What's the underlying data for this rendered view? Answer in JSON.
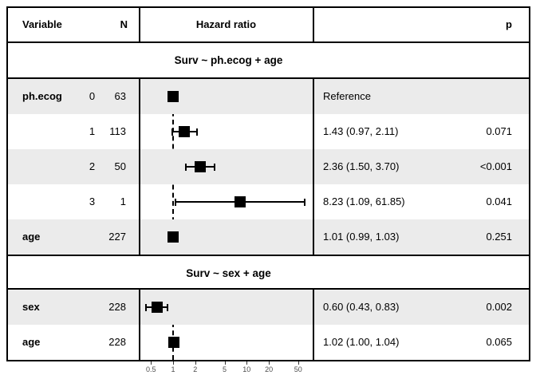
{
  "header": {
    "variable": "Variable",
    "n": "N",
    "hazard_ratio": "Hazard ratio",
    "p": "p"
  },
  "colors": {
    "row_shade": "#ebebeb",
    "marker": "#000000",
    "border": "#000000",
    "axis_label": "#4d4d4d"
  },
  "chart_data": {
    "type": "scatter",
    "subtype": "forest-plot",
    "x_scale": "log10",
    "x_ticks": [
      0.5,
      1,
      2,
      5,
      10,
      20,
      50
    ],
    "x_range": [
      0.34,
      77
    ],
    "reference_line": 1,
    "grid": false,
    "columns": [
      "Variable",
      "N",
      "Hazard ratio",
      "p"
    ],
    "sections": [
      {
        "title": "Surv ~ ph.ecog + age",
        "rows": [
          {
            "variable": "ph.ecog",
            "level": "0",
            "n": "63",
            "hr": 1.0,
            "ci_low": 1.0,
            "ci_high": 1.0,
            "estimate_label": "Reference",
            "p": "",
            "shaded": true,
            "is_reference": true
          },
          {
            "variable": "",
            "level": "1",
            "n": "113",
            "hr": 1.43,
            "ci_low": 0.97,
            "ci_high": 2.11,
            "estimate_label": "1.43 (0.97, 2.11)",
            "p": "0.071",
            "shaded": false,
            "is_reference": false
          },
          {
            "variable": "",
            "level": "2",
            "n": "50",
            "hr": 2.36,
            "ci_low": 1.5,
            "ci_high": 3.7,
            "estimate_label": "2.36 (1.50, 3.70)",
            "p": "<0.001",
            "shaded": true,
            "is_reference": false
          },
          {
            "variable": "",
            "level": "3",
            "n": "1",
            "hr": 8.23,
            "ci_low": 1.09,
            "ci_high": 61.85,
            "estimate_label": "8.23 (1.09, 61.85)",
            "p": "0.041",
            "shaded": false,
            "is_reference": false
          },
          {
            "variable": "age",
            "level": "",
            "n": "227",
            "hr": 1.01,
            "ci_low": 0.99,
            "ci_high": 1.03,
            "estimate_label": "1.01 (0.99, 1.03)",
            "p": "0.251",
            "shaded": true,
            "is_reference": false
          }
        ]
      },
      {
        "title": "Surv ~ sex + age",
        "rows": [
          {
            "variable": "sex",
            "level": "",
            "n": "228",
            "hr": 0.6,
            "ci_low": 0.43,
            "ci_high": 0.83,
            "estimate_label": "0.60 (0.43, 0.83)",
            "p": "0.002",
            "shaded": true,
            "is_reference": false
          },
          {
            "variable": "age",
            "level": "",
            "n": "228",
            "hr": 1.02,
            "ci_low": 1.0,
            "ci_high": 1.04,
            "estimate_label": "1.02 (1.00, 1.04)",
            "p": "0.065",
            "shaded": false,
            "is_reference": false
          }
        ]
      }
    ]
  }
}
